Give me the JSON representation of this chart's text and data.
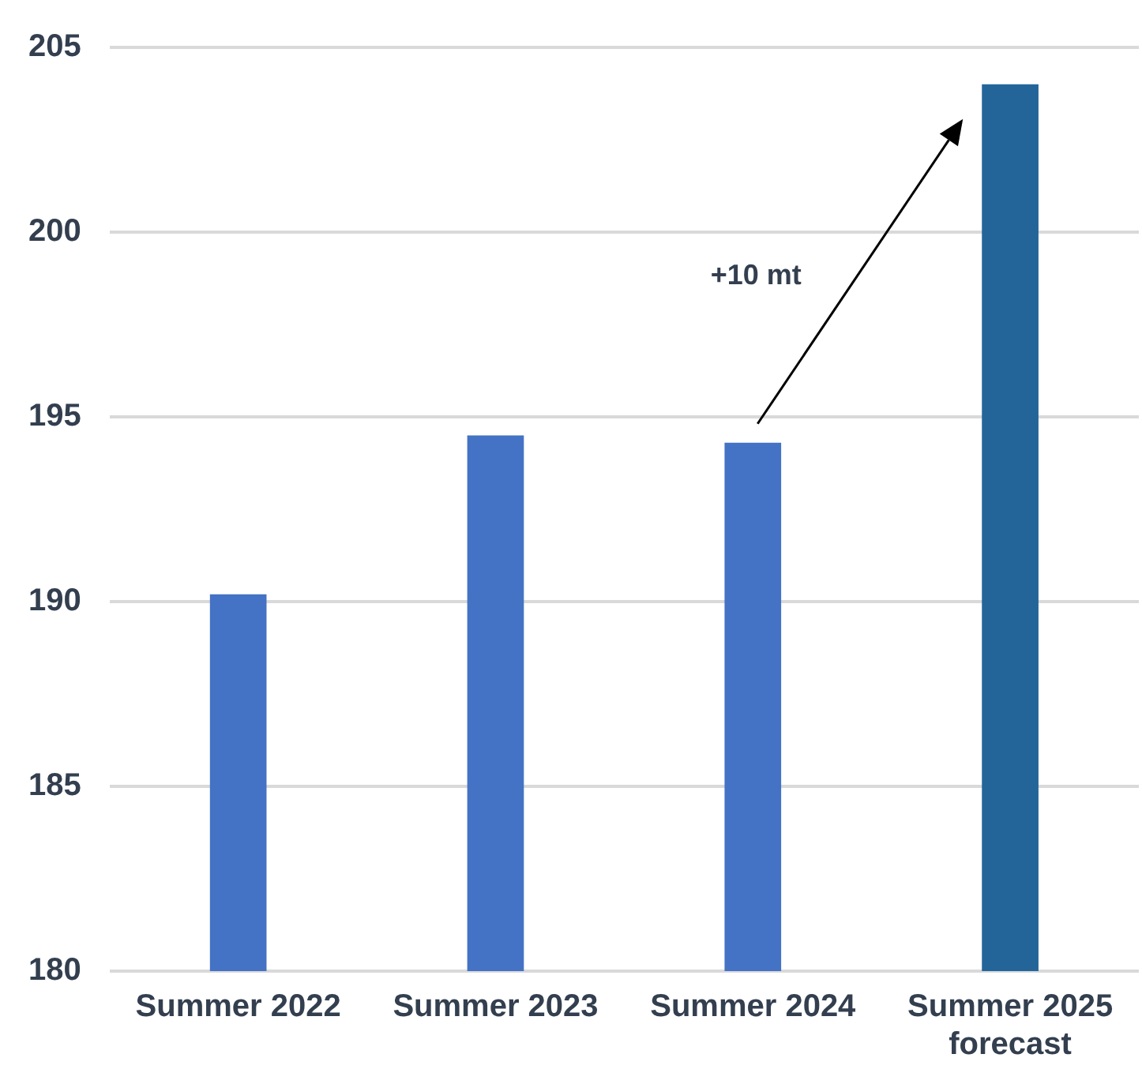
{
  "chart_data": {
    "type": "bar",
    "categories": [
      "Summer 2022",
      "Summer 2023",
      "Summer 2024",
      "Summer 2025 forecast"
    ],
    "values": [
      190.2,
      194.5,
      194.3,
      204.0
    ],
    "colors": [
      "#4472c4",
      "#4472c4",
      "#4472c4",
      "#236599"
    ],
    "ylim": [
      180,
      205
    ],
    "yticks": [
      180,
      185,
      190,
      195,
      200,
      205
    ],
    "grid": "y",
    "annotations": [
      "+10 mt"
    ]
  }
}
